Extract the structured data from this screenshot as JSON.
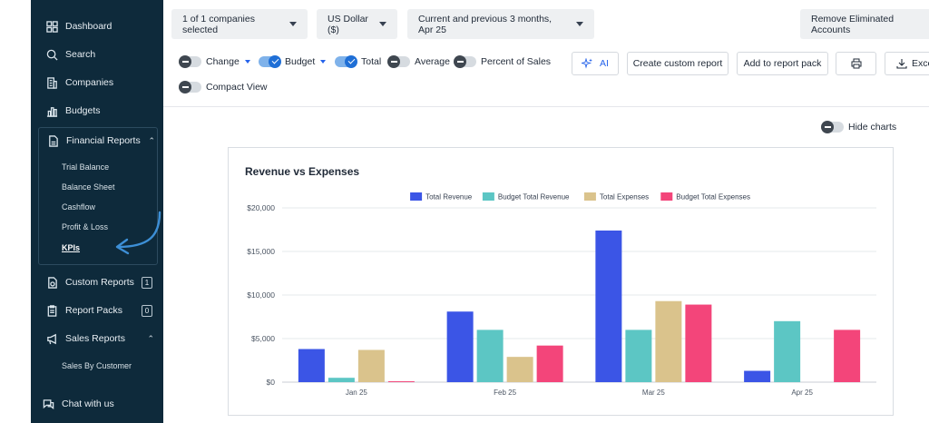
{
  "sidebar": {
    "items": [
      {
        "label": "Dashboard",
        "icon": "dashboard-icon"
      },
      {
        "label": "Search",
        "icon": "search-icon"
      },
      {
        "label": "Companies",
        "icon": "building-icon"
      },
      {
        "label": "Budgets",
        "icon": "bar-chart-icon"
      }
    ],
    "financial_reports": {
      "label": "Financial Reports",
      "icon": "document-icon",
      "sub_items": [
        "Trial Balance",
        "Balance Sheet",
        "Cashflow",
        "Profit & Loss",
        "KPIs"
      ],
      "active": "KPIs"
    },
    "custom_reports": {
      "label": "Custom Reports",
      "count": "1"
    },
    "report_packs": {
      "label": "Report Packs",
      "count": "0"
    },
    "sales_reports": {
      "label": "Sales Reports",
      "sub_items": [
        "Sales By Customer"
      ]
    },
    "chat": {
      "label": "Chat with us"
    }
  },
  "filters": {
    "companies": "1 of 1 companies selected",
    "currency": "US Dollar ($)",
    "period": "Current and previous 3 months, Apr 25",
    "remove_eliminated": "Remove Eliminated Accounts"
  },
  "toggles": {
    "change": {
      "label": "Change",
      "on": false
    },
    "budget": {
      "label": "Budget",
      "on": true
    },
    "total": {
      "label": "Total",
      "on": true
    },
    "average": {
      "label": "Average",
      "on": false
    },
    "percent_of_sales": {
      "label": "Percent of Sales",
      "on": false
    },
    "compact_view": {
      "label": "Compact View",
      "on": false
    },
    "hide_charts": {
      "label": "Hide charts",
      "on": false
    }
  },
  "buttons": {
    "ai": "AI",
    "create_custom_report": "Create custom report",
    "add_to_report_pack": "Add to report pack",
    "excel": "Exce"
  },
  "colors": {
    "total_revenue": "#3b55e6",
    "budget_total_revenue": "#5cc6c4",
    "total_expenses": "#dac38c",
    "budget_total_expenses": "#f3457a"
  },
  "chart_data": {
    "type": "bar",
    "title": "Revenue vs Expenses",
    "categories": [
      "Jan 25",
      "Feb 25",
      "Mar 25",
      "Apr 25"
    ],
    "series": [
      {
        "name": "Total Revenue",
        "values": [
          3800,
          8100,
          17400,
          1300
        ]
      },
      {
        "name": "Budget Total Revenue",
        "values": [
          500,
          6000,
          6000,
          7000
        ]
      },
      {
        "name": "Total Expenses",
        "values": [
          3700,
          2900,
          9300,
          0
        ]
      },
      {
        "name": "Budget Total Expenses",
        "values": [
          100,
          4200,
          8900,
          6000
        ]
      }
    ],
    "yticks": [
      "$0",
      "$5,000",
      "$10,000",
      "$15,000",
      "$20,000"
    ],
    "ylim": [
      0,
      20000
    ],
    "legend": "top-center",
    "grid": true
  }
}
